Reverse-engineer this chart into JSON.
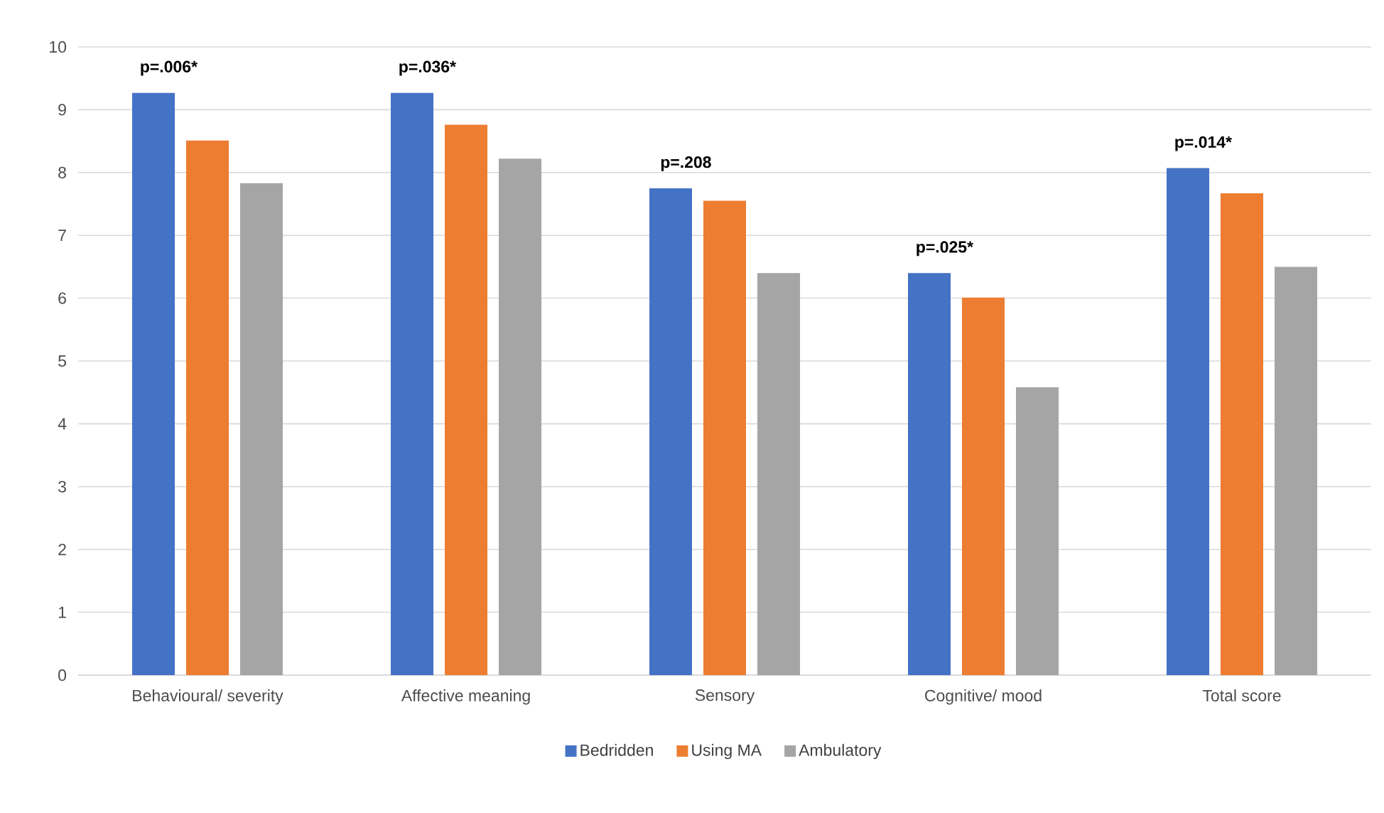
{
  "chart_data": {
    "type": "bar",
    "categories": [
      "Behavioural/ severity",
      "Affective meaning",
      "Sensory",
      "Cognitive/ mood",
      "Total score"
    ],
    "series": [
      {
        "name": "Bedridden",
        "color": "#4472c4",
        "values": [
          9.27,
          9.27,
          7.75,
          6.4,
          8.07
        ]
      },
      {
        "name": "Using MA",
        "color": "#ed7d31",
        "values": [
          8.51,
          8.76,
          7.55,
          6.01,
          7.67
        ]
      },
      {
        "name": "Ambulatory",
        "color": "#a5a5a5",
        "values": [
          7.83,
          8.22,
          6.4,
          4.58,
          6.5
        ]
      }
    ],
    "ylim": [
      0,
      10
    ],
    "yticks": [
      0,
      1,
      2,
      3,
      4,
      5,
      6,
      7,
      8,
      9,
      10
    ],
    "grid": "y",
    "legend": "bottom",
    "annotations": [
      "p=.006*",
      "p=.036*",
      "p=.208",
      "p=.025*",
      "p=.014*"
    ]
  }
}
